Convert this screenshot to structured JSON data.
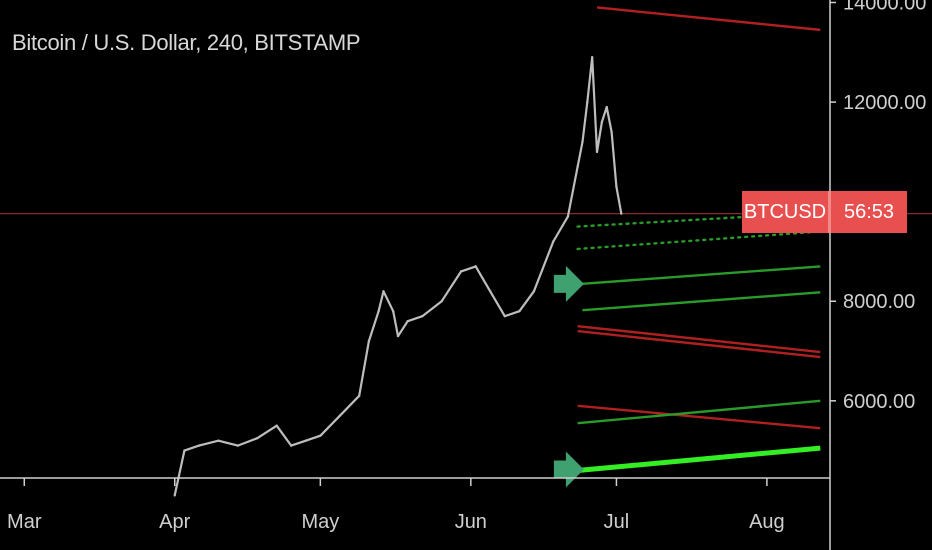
{
  "header": {
    "title": "Bitcoin / U.S. Dollar, 240, BITSTAMP"
  },
  "price_label": {
    "symbol": "BTCUSD",
    "countdown": "56:53",
    "color": "#e85050"
  },
  "colors": {
    "background": "#000000",
    "axis": "#cfcfcf",
    "candle": "#bdbdbd",
    "up_line": "#2a9a2a",
    "down_line": "#b02020",
    "bright_green": "#33ee22",
    "arrow": "#3fa070",
    "current_price_line": "#8b2a2a"
  },
  "icons": [
    "right-arrow-icon",
    "right-arrow-icon"
  ],
  "chart_data": {
    "type": "line",
    "title": "Bitcoin / U.S. Dollar, 240, BITSTAMP",
    "xlabel": "",
    "ylabel": "",
    "x_ticks": [
      "Mar",
      "Apr",
      "May",
      "Jun",
      "Jul",
      "Aug"
    ],
    "y_ticks": [
      6000,
      8000,
      12000,
      14000
    ],
    "y_tick_labels": [
      "6000.00",
      "8000.00",
      "12000.00",
      "14000.00"
    ],
    "ylim": [
      4450,
      14050
    ],
    "xlim": [
      "2019-02-24",
      "2019-08-14"
    ],
    "grid": false,
    "current_price": 9760,
    "price": {
      "x": [
        "2019-04-01",
        "2019-04-03",
        "2019-04-06",
        "2019-04-10",
        "2019-04-14",
        "2019-04-18",
        "2019-04-22",
        "2019-04-25",
        "2019-04-28",
        "2019-05-01",
        "2019-05-05",
        "2019-05-09",
        "2019-05-11",
        "2019-05-13",
        "2019-05-14",
        "2019-05-16",
        "2019-05-17",
        "2019-05-19",
        "2019-05-22",
        "2019-05-26",
        "2019-05-30",
        "2019-06-02",
        "2019-06-05",
        "2019-06-08",
        "2019-06-11",
        "2019-06-14",
        "2019-06-18",
        "2019-06-21",
        "2019-06-23",
        "2019-06-24",
        "2019-06-25",
        "2019-06-26",
        "2019-06-27",
        "2019-06-28",
        "2019-06-29",
        "2019-06-30",
        "2019-07-01",
        "2019-07-02"
      ],
      "y": [
        4100,
        5000,
        5100,
        5200,
        5100,
        5250,
        5500,
        5100,
        5200,
        5300,
        5700,
        6100,
        7200,
        7800,
        8200,
        7800,
        7300,
        7600,
        7700,
        8000,
        8600,
        8700,
        8200,
        7700,
        7800,
        8200,
        9200,
        9700,
        10700,
        11200,
        12000,
        12900,
        11000,
        11600,
        11900,
        11400,
        10300,
        9760
      ]
    },
    "annotations": [
      {
        "type": "trendline",
        "color": "down",
        "x": [
          "2019-06-27",
          "2019-08-12"
        ],
        "y": [
          13900,
          13450
        ]
      },
      {
        "type": "trendline",
        "color": "up",
        "style": "dotted",
        "x": [
          "2019-06-23",
          "2019-08-12"
        ],
        "y": [
          9500,
          9780
        ]
      },
      {
        "type": "trendline",
        "color": "up",
        "style": "dotted",
        "x": [
          "2019-06-23",
          "2019-08-12"
        ],
        "y": [
          9050,
          9400
        ]
      },
      {
        "type": "trendline",
        "color": "up",
        "x": [
          "2019-06-24",
          "2019-08-12"
        ],
        "y": [
          8350,
          8700
        ]
      },
      {
        "type": "trendline",
        "color": "up",
        "x": [
          "2019-06-24",
          "2019-08-12"
        ],
        "y": [
          7820,
          8180
        ]
      },
      {
        "type": "trendline",
        "color": "down",
        "x": [
          "2019-06-23",
          "2019-08-12"
        ],
        "y": [
          7500,
          6980
        ]
      },
      {
        "type": "trendline",
        "color": "down",
        "x": [
          "2019-06-23",
          "2019-08-12"
        ],
        "y": [
          7400,
          6880
        ]
      },
      {
        "type": "trendline",
        "color": "down",
        "x": [
          "2019-06-23",
          "2019-08-12"
        ],
        "y": [
          5900,
          5450
        ]
      },
      {
        "type": "trendline",
        "color": "up",
        "x": [
          "2019-06-23",
          "2019-08-12"
        ],
        "y": [
          5550,
          6000
        ]
      },
      {
        "type": "trendline",
        "color": "bright",
        "x": [
          "2019-06-23",
          "2019-08-12"
        ],
        "y": [
          4600,
          5050
        ]
      },
      {
        "type": "arrow",
        "x": "2019-06-21",
        "y": 8350
      },
      {
        "type": "arrow",
        "x": "2019-06-21",
        "y": 4620
      }
    ]
  }
}
